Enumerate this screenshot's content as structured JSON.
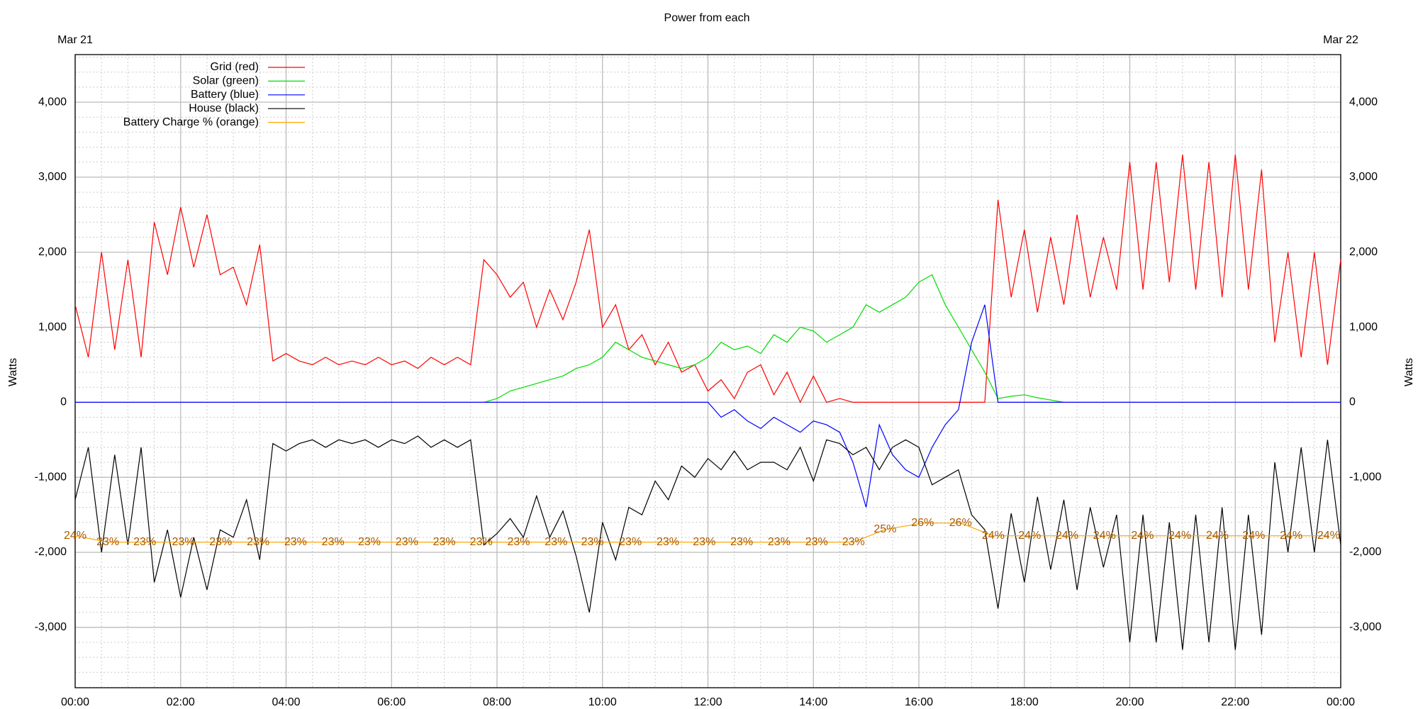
{
  "chart_data": {
    "type": "line",
    "title": "Power from each",
    "dates": [
      "Mar 21",
      "Mar 22"
    ],
    "ylabel": "Watts",
    "legend": "upper left",
    "grid": true,
    "xlim": [
      0,
      24
    ],
    "xticks": [
      {
        "value": 0,
        "label": "00:00"
      },
      {
        "value": 2,
        "label": "02:00"
      },
      {
        "value": 4,
        "label": "04:00"
      },
      {
        "value": 6,
        "label": "06:00"
      },
      {
        "value": 8,
        "label": "08:00"
      },
      {
        "value": 10,
        "label": "10:00"
      },
      {
        "value": 12,
        "label": "12:00"
      },
      {
        "value": 14,
        "label": "14:00"
      },
      {
        "value": 16,
        "label": "16:00"
      },
      {
        "value": 18,
        "label": "18:00"
      },
      {
        "value": 20,
        "label": "20:00"
      },
      {
        "value": 22,
        "label": "22:00"
      },
      {
        "value": 24,
        "label": "00:00"
      }
    ],
    "xminorticks": [
      0.5,
      1,
      1.5,
      2.5,
      3,
      3.5,
      4.5,
      5,
      5.5,
      6.5,
      7,
      7.5,
      8.5,
      9,
      9.5,
      10.5,
      11,
      11.5,
      12.5,
      13,
      13.5,
      14.5,
      15,
      15.5,
      16.5,
      17,
      17.5,
      18.5,
      19,
      19.5,
      20.5,
      21,
      21.5,
      22.5,
      23,
      23.5
    ],
    "ylim": [
      -3805,
      4634
    ],
    "yticks": [
      {
        "value": -3000,
        "label": "-3,000"
      },
      {
        "value": -2000,
        "label": "-2,000"
      },
      {
        "value": -1000,
        "label": "-1,000"
      },
      0,
      {
        "value": 1000,
        "label": "1,000"
      },
      {
        "value": 2000,
        "label": "2,000"
      },
      {
        "value": 3000,
        "label": "3,000"
      },
      {
        "value": 4000,
        "label": "4,000"
      }
    ],
    "yminorticks": [
      -3800,
      -3600,
      -3400,
      -3200,
      -2800,
      -2600,
      -2400,
      -2200,
      -1800,
      -1600,
      -1400,
      -1200,
      -800,
      -600,
      -400,
      -200,
      200,
      400,
      600,
      800,
      1200,
      1400,
      1600,
      1800,
      2200,
      2400,
      2600,
      2800,
      3200,
      3400,
      3600,
      3800,
      4200,
      4400,
      4600
    ],
    "y3lim": [
      0,
      100
    ],
    "x": [
      0,
      0.25,
      0.5,
      0.75,
      1,
      1.25,
      1.5,
      1.75,
      2,
      2.25,
      2.5,
      2.75,
      3,
      3.25,
      3.5,
      3.75,
      4,
      4.25,
      4.5,
      4.75,
      5,
      5.25,
      5.5,
      5.75,
      6,
      6.25,
      6.5,
      6.75,
      7,
      7.25,
      7.5,
      7.75,
      8,
      8.25,
      8.5,
      8.75,
      9,
      9.25,
      9.5,
      9.75,
      10,
      10.25,
      10.5,
      10.75,
      11,
      11.25,
      11.5,
      11.75,
      12,
      12.25,
      12.5,
      12.75,
      13,
      13.25,
      13.5,
      13.75,
      14,
      14.25,
      14.5,
      14.75,
      15,
      15.25,
      15.5,
      15.75,
      16,
      16.25,
      16.5,
      16.75,
      17,
      17.25,
      17.5,
      17.75,
      18,
      18.25,
      18.5,
      18.75,
      19,
      19.25,
      19.5,
      19.75,
      20,
      20.25,
      20.5,
      20.75,
      21,
      21.25,
      21.5,
      21.75,
      22,
      22.25,
      22.5,
      22.75,
      23,
      23.25,
      23.5,
      23.75,
      24
    ],
    "series": [
      {
        "name": "Grid (red)",
        "color": "#ff0000",
        "values": [
          1300,
          600,
          2000,
          700,
          1900,
          600,
          2400,
          1700,
          2600,
          1800,
          2500,
          1700,
          1800,
          1300,
          2100,
          550,
          650,
          550,
          500,
          600,
          500,
          550,
          500,
          600,
          500,
          550,
          450,
          600,
          500,
          600,
          500,
          1900,
          1700,
          1400,
          1600,
          1000,
          1500,
          1100,
          1600,
          2300,
          1000,
          1300,
          700,
          900,
          500,
          800,
          400,
          500,
          150,
          300,
          50,
          400,
          500,
          100,
          400,
          0,
          350,
          0,
          50,
          0,
          0,
          0,
          0,
          0,
          0,
          0,
          0,
          0,
          0,
          0,
          2700,
          1400,
          2300,
          1200,
          2200,
          1300,
          2500,
          1400,
          2200,
          1500,
          3200,
          1500,
          3200,
          1600,
          3300,
          1500,
          3200,
          1400,
          3300,
          1500,
          3100,
          800,
          2000,
          600,
          2000,
          500,
          1900
        ]
      },
      {
        "name": "Solar (green)",
        "color": "#00dd00",
        "values": [
          null,
          null,
          null,
          null,
          null,
          null,
          null,
          null,
          null,
          null,
          null,
          null,
          null,
          null,
          null,
          null,
          null,
          null,
          null,
          null,
          null,
          null,
          null,
          null,
          null,
          null,
          null,
          null,
          null,
          null,
          null,
          0,
          50,
          150,
          200,
          250,
          300,
          350,
          450,
          500,
          600,
          800,
          700,
          600,
          550,
          500,
          450,
          500,
          600,
          800,
          700,
          750,
          650,
          900,
          800,
          1000,
          950,
          800,
          900,
          1000,
          1300,
          1200,
          1300,
          1400,
          1600,
          1700,
          1300,
          1000,
          700,
          400,
          50,
          80,
          100,
          60,
          30,
          0,
          null,
          null,
          null,
          null,
          null,
          null,
          null,
          null,
          null,
          null,
          null,
          null,
          null,
          null,
          null,
          null,
          null,
          null,
          null,
          null,
          null
        ]
      },
      {
        "name": "Battery (blue)",
        "color": "#0000ff",
        "values": [
          0,
          0,
          0,
          0,
          0,
          0,
          0,
          0,
          0,
          0,
          0,
          0,
          0,
          0,
          0,
          0,
          0,
          0,
          0,
          0,
          0,
          0,
          0,
          0,
          0,
          0,
          0,
          0,
          0,
          0,
          0,
          0,
          0,
          0,
          0,
          0,
          0,
          0,
          0,
          0,
          0,
          0,
          0,
          0,
          0,
          0,
          0,
          0,
          0,
          -200,
          -100,
          -250,
          -350,
          -200,
          -300,
          -400,
          -250,
          -300,
          -400,
          -800,
          -1400,
          -300,
          -700,
          -900,
          -1000,
          -600,
          -300,
          -100,
          800,
          1300,
          0,
          0,
          0,
          0,
          0,
          0,
          0,
          0,
          0,
          0,
          0,
          0,
          0,
          0,
          0,
          0,
          0,
          0,
          0,
          0,
          0,
          0,
          0,
          0,
          0,
          0,
          0
        ]
      },
      {
        "name": "House (black)",
        "color": "#000000",
        "values": [
          -1300,
          -600,
          -2000,
          -700,
          -1900,
          -600,
          -2400,
          -1700,
          -2600,
          -1800,
          -2500,
          -1700,
          -1800,
          -1300,
          -2100,
          -550,
          -650,
          -550,
          -500,
          -600,
          -500,
          -550,
          -500,
          -600,
          -500,
          -550,
          -450,
          -600,
          -500,
          -600,
          -500,
          -1900,
          -1750,
          -1550,
          -1800,
          -1250,
          -1800,
          -1450,
          -2050,
          -2800,
          -1600,
          -2100,
          -1400,
          -1500,
          -1050,
          -1300,
          -850,
          -1000,
          -750,
          -900,
          -650,
          -900,
          -800,
          -800,
          -900,
          -600,
          -1050,
          -500,
          -550,
          -700,
          -600,
          -900,
          -600,
          -500,
          -600,
          -1100,
          -1000,
          -900,
          -1500,
          -1700,
          -2750,
          -1480,
          -2400,
          -1260,
          -2230,
          -1300,
          -2500,
          -1400,
          -2200,
          -1500,
          -3200,
          -1500,
          -3200,
          -1600,
          -3300,
          -1500,
          -3200,
          -1400,
          -3300,
          -1500,
          -3100,
          -800,
          -2000,
          -600,
          -2000,
          -500,
          -1900
        ]
      },
      {
        "name": "Battery Charge % (orange)",
        "color": "#ffa500",
        "label_color": "#a85a00",
        "axis": "y3",
        "x": [
          0,
          0.62,
          1.32,
          2.05,
          2.76,
          3.47,
          4.18,
          4.89,
          5.58,
          6.29,
          7.0,
          7.7,
          8.41,
          9.12,
          9.81,
          10.53,
          11.24,
          11.93,
          12.64,
          13.35,
          14.06,
          14.76,
          15.36,
          16.07,
          16.79,
          17.41,
          18.1,
          18.81,
          19.52,
          20.24,
          20.95,
          21.66,
          22.35,
          23.06,
          23.77
        ],
        "values": [
          24,
          23,
          23,
          23,
          23,
          23,
          23,
          23,
          23,
          23,
          23,
          23,
          23,
          23,
          23,
          23,
          23,
          23,
          23,
          23,
          23,
          23,
          25,
          26,
          26,
          24,
          24,
          24,
          24,
          24,
          24,
          24,
          24,
          24,
          24
        ],
        "value_labels": [
          "24%",
          "23%",
          "23%",
          "23%",
          "23%",
          "23%",
          "23%",
          "23%",
          "23%",
          "23%",
          "23%",
          "23%",
          "23%",
          "23%",
          "23%",
          "23%",
          "23%",
          "23%",
          "23%",
          "23%",
          "23%",
          "23%",
          "25%",
          "26%",
          "26%",
          "24%",
          "24%",
          "24%",
          "24%",
          "24%",
          "24%",
          "24%",
          "24%",
          "24%",
          "24%"
        ]
      }
    ]
  }
}
